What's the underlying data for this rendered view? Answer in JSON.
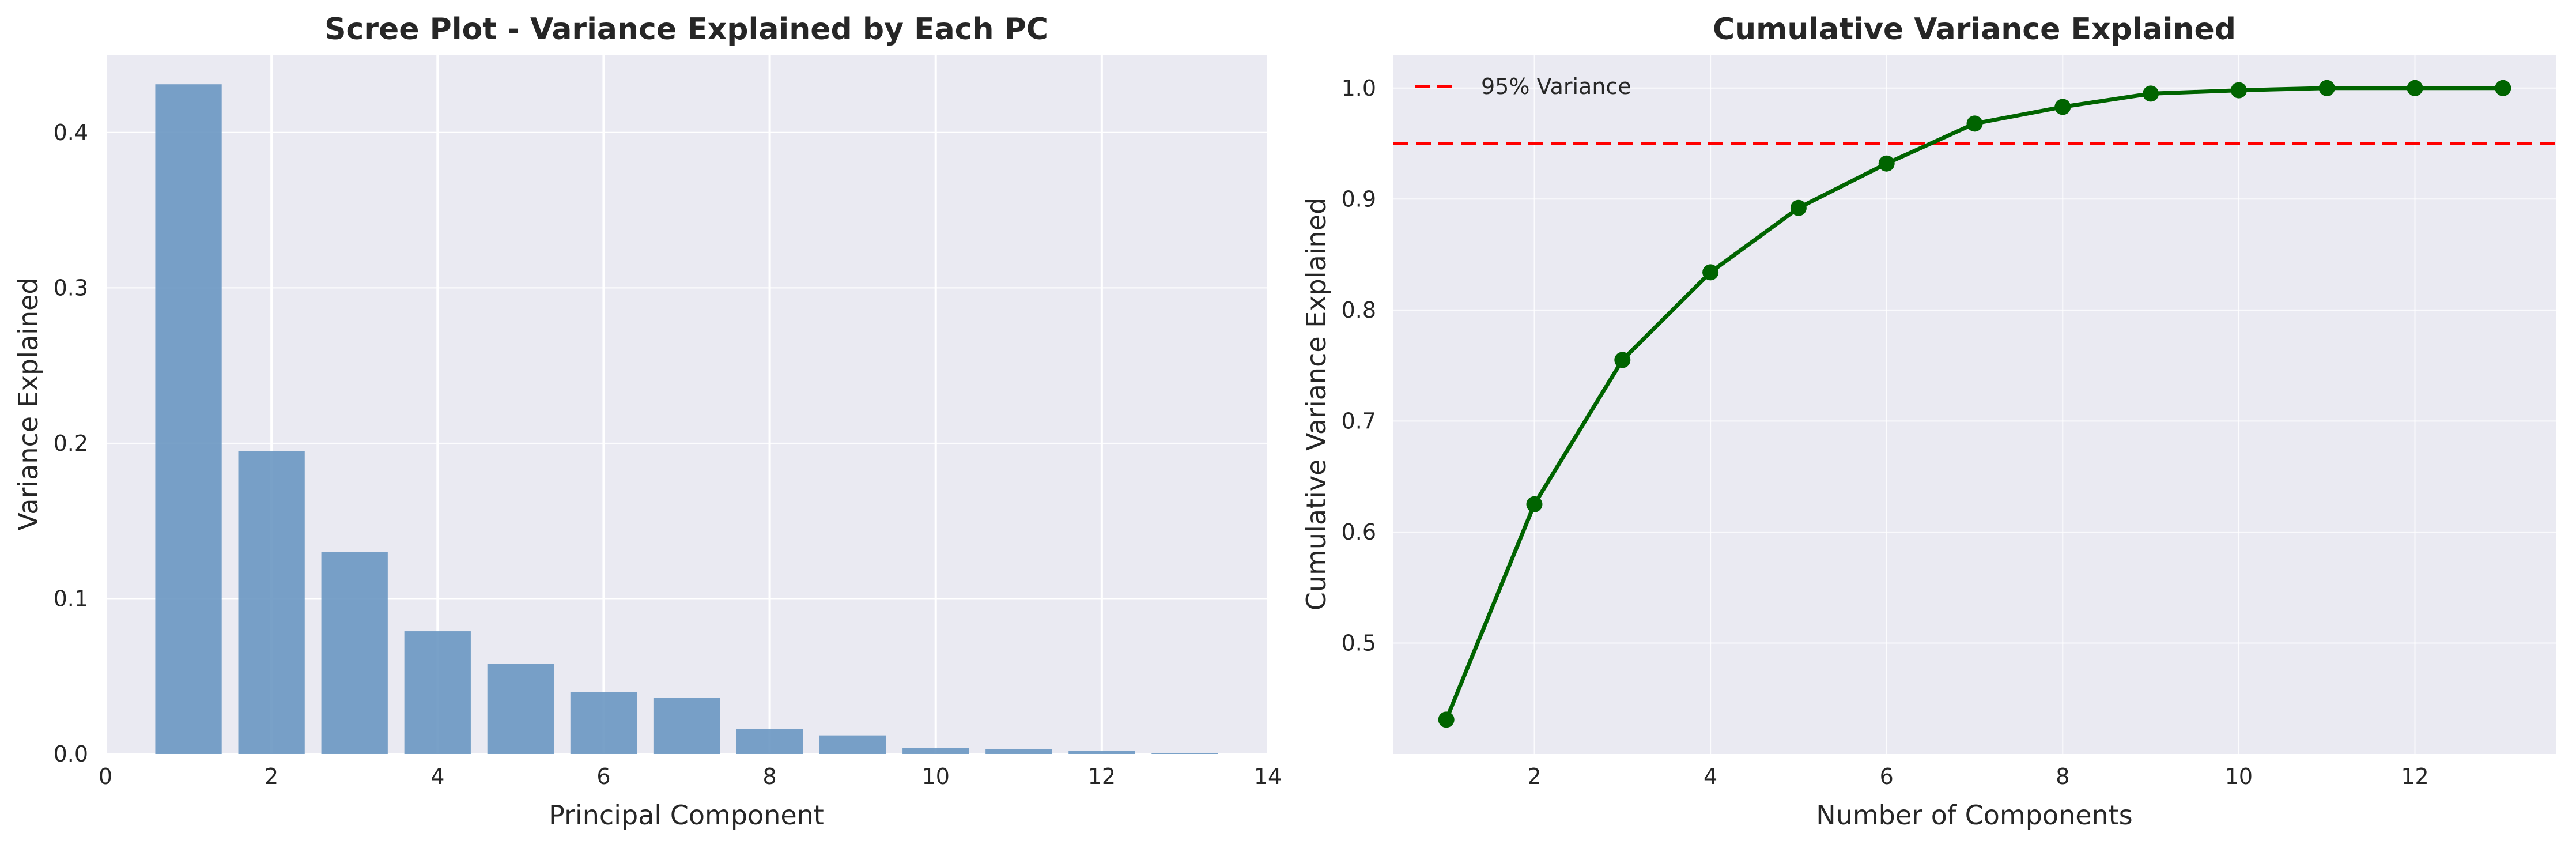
{
  "chart_data": [
    {
      "type": "bar",
      "title": "Scree Plot - Variance Explained by Each PC",
      "xlabel": "Principal Component",
      "ylabel": "Variance Explained",
      "x": [
        1,
        2,
        3,
        4,
        5,
        6,
        7,
        8,
        9,
        10,
        11,
        12,
        13
      ],
      "values": [
        0.431,
        0.195,
        0.13,
        0.079,
        0.058,
        0.04,
        0.036,
        0.016,
        0.012,
        0.004,
        0.003,
        0.002,
        0.0005
      ],
      "xlim": [
        0,
        14
      ],
      "ylim": [
        0,
        0.45
      ],
      "xticks": [
        0,
        2,
        4,
        6,
        8,
        10,
        12,
        14
      ],
      "yticks": [
        0.0,
        0.1,
        0.2,
        0.3,
        0.4
      ],
      "xtick_labels": [
        "0",
        "2",
        "4",
        "6",
        "8",
        "10",
        "12",
        "14"
      ],
      "ytick_labels": [
        "0.0",
        "0.1",
        "0.2",
        "0.3",
        "0.4"
      ],
      "grid": true,
      "colors": {
        "bar": "#6a97c2",
        "background": "#eaeaf2",
        "grid": "#ffffff"
      }
    },
    {
      "type": "line",
      "title": "Cumulative Variance Explained",
      "xlabel": "Number of Components",
      "ylabel": "Cumulative Variance Explained",
      "x": [
        1,
        2,
        3,
        4,
        5,
        6,
        7,
        8,
        9,
        10,
        11,
        12,
        13
      ],
      "values": [
        0.431,
        0.625,
        0.755,
        0.834,
        0.892,
        0.932,
        0.968,
        0.983,
        0.995,
        0.998,
        1.0,
        1.0,
        1.0
      ],
      "xlim": [
        0.4,
        13.6
      ],
      "ylim": [
        0.4,
        1.03
      ],
      "xticks": [
        2,
        4,
        6,
        8,
        10,
        12
      ],
      "yticks": [
        0.5,
        0.6,
        0.7,
        0.8,
        0.9,
        1.0
      ],
      "xtick_labels": [
        "2",
        "4",
        "6",
        "8",
        "10",
        "12"
      ],
      "ytick_labels": [
        "0.5",
        "0.6",
        "0.7",
        "0.8",
        "0.9",
        "1.0"
      ],
      "threshold": {
        "value": 0.95,
        "label": "95% Variance"
      },
      "legend_position": "top-left",
      "grid": true,
      "colors": {
        "line": "#006400",
        "threshold": "#ff0000",
        "background": "#eaeaf2",
        "grid": "#ffffff"
      }
    }
  ]
}
